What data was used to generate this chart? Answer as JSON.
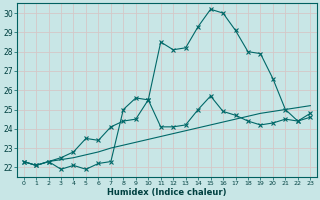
{
  "xlabel": "Humidex (Indice chaleur)",
  "background_color": "#c8e6e6",
  "grid_color": "#b0d0d0",
  "line_color": "#006868",
  "xlim": [
    -0.5,
    23.5
  ],
  "ylim": [
    21.5,
    30.5
  ],
  "xticks": [
    0,
    1,
    2,
    3,
    4,
    5,
    6,
    7,
    8,
    9,
    10,
    11,
    12,
    13,
    14,
    15,
    16,
    17,
    18,
    19,
    20,
    21,
    22,
    23
  ],
  "yticks": [
    22,
    23,
    24,
    25,
    26,
    27,
    28,
    29,
    30
  ],
  "series1_x": [
    0,
    1,
    2,
    3,
    4,
    5,
    6,
    7,
    8,
    9,
    10,
    11,
    12,
    13,
    14,
    15,
    16,
    17,
    18,
    19,
    20,
    21,
    22,
    23
  ],
  "series1_y": [
    22.3,
    22.1,
    22.3,
    21.9,
    22.1,
    21.9,
    22.2,
    22.3,
    25.0,
    25.6,
    25.5,
    28.5,
    28.1,
    28.2,
    29.3,
    30.2,
    30.0,
    29.1,
    28.0,
    27.9,
    26.6,
    25.0,
    24.4,
    24.8
  ],
  "series2_x": [
    0,
    1,
    2,
    3,
    4,
    5,
    6,
    7,
    8,
    9,
    10,
    11,
    12,
    13,
    14,
    15,
    16,
    17,
    18,
    19,
    20,
    21,
    22,
    23
  ],
  "series2_y": [
    22.3,
    22.1,
    22.3,
    22.5,
    22.8,
    23.5,
    23.4,
    24.1,
    24.4,
    24.5,
    25.5,
    24.1,
    24.1,
    24.2,
    25.0,
    25.7,
    24.9,
    24.7,
    24.4,
    24.2,
    24.3,
    24.5,
    24.4,
    24.6
  ],
  "series3_x": [
    0,
    1,
    2,
    3,
    4,
    5,
    6,
    7,
    8,
    9,
    10,
    11,
    12,
    13,
    14,
    15,
    16,
    17,
    18,
    19,
    20,
    21,
    22,
    23
  ],
  "series3_y": [
    22.3,
    22.1,
    22.3,
    22.4,
    22.5,
    22.65,
    22.8,
    23.0,
    23.15,
    23.3,
    23.45,
    23.6,
    23.75,
    23.9,
    24.05,
    24.2,
    24.35,
    24.5,
    24.65,
    24.8,
    24.9,
    25.0,
    25.1,
    25.2
  ]
}
